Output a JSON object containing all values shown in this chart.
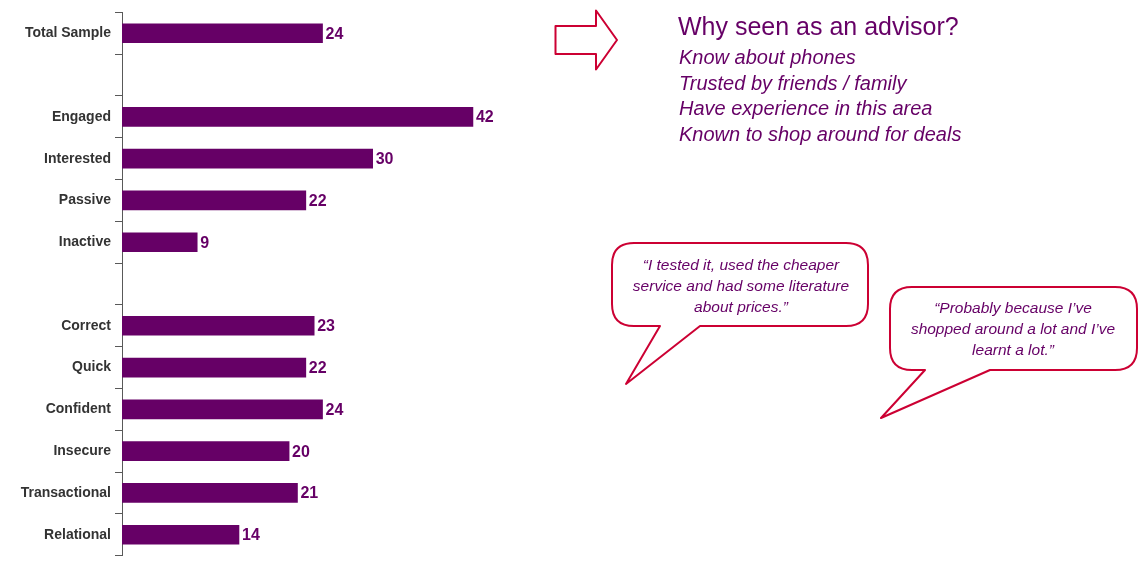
{
  "chart_data": {
    "type": "bar",
    "orientation": "horizontal",
    "categories": [
      "Total Sample",
      null,
      "Engaged",
      "Interested",
      "Passive",
      "Inactive",
      null,
      "Correct",
      "Quick",
      "Confident",
      "Insecure",
      "Transactional",
      "Relational"
    ],
    "values": [
      24,
      null,
      42,
      30,
      22,
      9,
      null,
      23,
      22,
      24,
      20,
      21,
      14
    ],
    "color": "#660066",
    "data_labels": true,
    "legend": false,
    "tick_labels": "y",
    "annotations": [
      "Why seen as an advisor?",
      "Know about phones",
      "Trusted by friends / family",
      "Have experience in this area",
      "Known to shop around for deals",
      "“I tested it, used the cheaper service and had some literature about prices.”",
      "“Probably because I’ve shopped around a lot and I’ve learnt a lot.”"
    ]
  }
}
